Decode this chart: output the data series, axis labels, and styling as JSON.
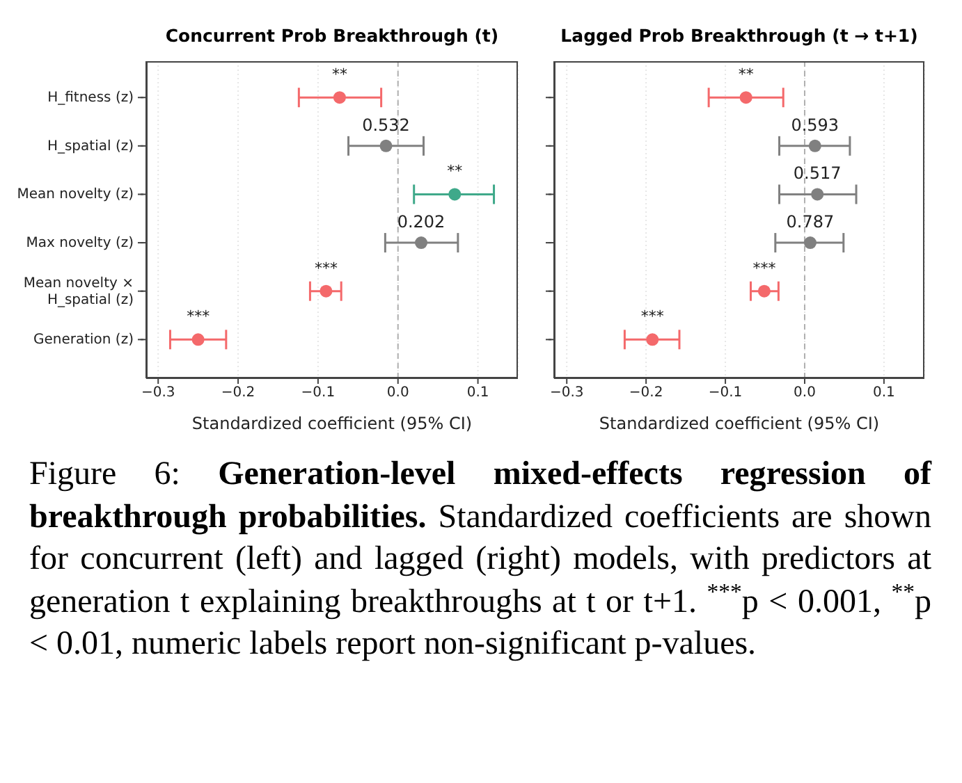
{
  "chart_data": [
    {
      "type": "scatter",
      "orientation": "horizontal",
      "title": "Concurrent Prob Breakthrough (t)",
      "xlabel": "Standardized coefficient (95% CI)",
      "categories": [
        "H_fitness (z)",
        "H_spatial (z)",
        "Mean novelty (z)",
        "Max novelty (z)",
        "Mean novelty × H_spatial (z)",
        "Generation (z)"
      ],
      "values": [
        -0.073,
        -0.015,
        0.071,
        0.029,
        -0.09,
        -0.25
      ],
      "errors": [
        [
          -0.124,
          -0.021
        ],
        [
          -0.062,
          0.032
        ],
        [
          0.02,
          0.12
        ],
        [
          -0.016,
          0.075
        ],
        [
          -0.11,
          -0.071
        ],
        [
          -0.285,
          -0.215
        ]
      ],
      "colors": [
        "#f4696b",
        "#808080",
        "#3fa98a",
        "#808080",
        "#f4696b",
        "#f4696b"
      ],
      "xlim": [
        -0.315,
        0.15
      ],
      "xticks": [
        {
          "value": -0.3,
          "label": "−0.3"
        },
        {
          "value": -0.2,
          "label": "−0.2"
        },
        {
          "value": -0.1,
          "label": "−0.1"
        },
        {
          "value": 0,
          "label": "0.0"
        },
        0.1
      ],
      "grid": "x",
      "marker": "circle",
      "ref_lines": [
        {
          "axis": "x",
          "value": 0,
          "color": "#b0b0b0",
          "line_style": "dashed"
        }
      ],
      "annotations": [
        {
          "text": "**",
          "x": -0.073,
          "y": "H_fitness (z)"
        },
        {
          "text": "0.532",
          "x": -0.015,
          "y": "H_spatial (z)"
        },
        {
          "text": "**",
          "x": 0.071,
          "y": "Mean novelty (z)"
        },
        {
          "text": "0.202",
          "x": 0.029,
          "y": "Max novelty (z)"
        },
        {
          "text": "***",
          "x": -0.09,
          "y": "Mean novelty × H_spatial (z)"
        },
        {
          "text": "***",
          "x": -0.25,
          "y": "Generation (z)"
        },
        "Figure 6:",
        "Generation-level mixed-effects regression of breakthrough probabilities.",
        "Standardized coefficients are shown for concurrent (left) and lagged (right) models, with predictors at generation t explaining breakthroughs at t or t+1. $^{***}$p < 0.001, $^{**}$p < 0.01, numeric labels report non-significant p-values."
      ]
    },
    {
      "type": "scatter",
      "orientation": "horizontal",
      "title": "Lagged Prob Breakthrough (t → t+1)",
      "xlabel": "Standardized coefficient (95% CI)",
      "categories": [
        "H_fitness (z)",
        "H_spatial (z)",
        "Mean novelty (z)",
        "Max novelty (z)",
        "Mean novelty × H_spatial (z)",
        "Generation (z)"
      ],
      "values": [
        -0.074,
        0.013,
        0.016,
        0.007,
        -0.051,
        -0.192
      ],
      "errors": [
        [
          -0.121,
          -0.027
        ],
        [
          -0.032,
          0.057
        ],
        [
          -0.032,
          0.065
        ],
        [
          -0.037,
          0.049
        ],
        [
          -0.068,
          -0.033
        ],
        [
          -0.227,
          -0.158
        ]
      ],
      "colors": [
        "#f4696b",
        "#808080",
        "#808080",
        "#808080",
        "#f4696b",
        "#f4696b"
      ],
      "annotations": [
        {
          "text": "**",
          "x": -0.074,
          "y": "H_fitness (z)"
        },
        {
          "text": "0.593",
          "x": 0.013,
          "y": "H_spatial (z)"
        },
        {
          "text": "0.517",
          "x": 0.016,
          "y": "Mean novelty (z)"
        },
        {
          "text": "0.787",
          "x": 0.007,
          "y": "Max novelty (z)"
        },
        {
          "text": "***",
          "x": -0.051,
          "y": "Mean novelty × H_spatial (z)"
        },
        {
          "text": "***",
          "x": -0.192,
          "y": "Generation (z)"
        }
      ],
      "xlim": [
        -0.316,
        0.151
      ],
      "xticks": [
        {
          "value": -0.3,
          "label": "−0.3"
        },
        {
          "value": -0.2,
          "label": "−0.2"
        },
        {
          "value": -0.1,
          "label": "−0.1"
        },
        {
          "value": 0,
          "label": "0.0"
        },
        0.1
      ],
      "grid": "x",
      "marker": "circle",
      "tick_labels": "x",
      "ref_lines": [
        {
          "axis": "x",
          "value": 0,
          "color": "#b0b0b0",
          "line_style": "dashed"
        }
      ]
    }
  ]
}
